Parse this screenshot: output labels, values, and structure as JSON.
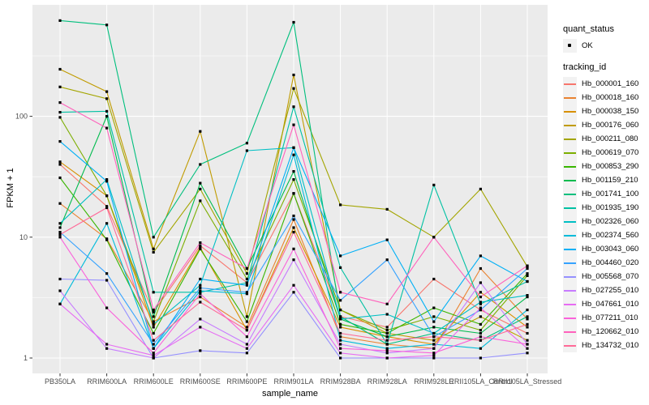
{
  "figure": {
    "panel_bg": "#EBEBEB",
    "grid_color": "#FFFFFF",
    "axis_text_color": "#4D4D4D",
    "tick_color": "#333333",
    "point_color": "#000000"
  },
  "legend": {
    "quant_status": {
      "title": "quant_status",
      "entries": [
        {
          "label": "OK",
          "symbol": "black-point"
        }
      ]
    },
    "tracking": {
      "title": "tracking_id"
    }
  },
  "chart_data": {
    "type": "line",
    "title": "",
    "xlabel": "sample_name",
    "ylabel": "FPKM + 1",
    "y_scale": "log10",
    "ylim": [
      1,
      840
    ],
    "y_ticks": [
      1,
      10,
      100
    ],
    "y_tick_labels": [
      "1",
      "10",
      "100"
    ],
    "y_minor": [
      3.1623,
      31.623,
      316.23
    ],
    "grid": true,
    "legend_position": "right",
    "point_marker": "small-black-square",
    "categories": [
      "PB350LA",
      "RRIM600LA",
      "RRIM600LE",
      "RRIM600SE",
      "RRIM600PE",
      "RRIM901LA",
      "RRIM928BA",
      "RRIM928LA",
      "RRIM928LE",
      "RRII105LA_Control",
      "RRII105LA_Stressed"
    ],
    "series": [
      {
        "name": "Hb_000001_160",
        "color": "#F8766D",
        "values": [
          40,
          18,
          2.4,
          8.5,
          4.2,
          23,
          2.2,
          1.8,
          4.5,
          2.5,
          1.6
        ]
      },
      {
        "name": "Hb_000018_160",
        "color": "#EA8331",
        "values": [
          19,
          9.7,
          2.0,
          3.2,
          1.8,
          14,
          1.5,
          1.3,
          1.2,
          5.5,
          2.1
        ]
      },
      {
        "name": "Hb_000038_150",
        "color": "#D89000",
        "values": [
          42,
          22,
          1.8,
          8.2,
          1.7,
          12,
          1.8,
          1.5,
          1.3,
          3.5,
          1.8
        ]
      },
      {
        "name": "Hb_000176_060",
        "color": "#C09B00",
        "values": [
          245,
          160,
          8,
          75,
          2.2,
          220,
          2.5,
          1.6,
          1.4,
          2.2,
          1.4
        ]
      },
      {
        "name": "Hb_000211_080",
        "color": "#A3A500",
        "values": [
          175,
          140,
          7.5,
          25,
          5,
          170,
          18.5,
          17,
          10,
          25,
          5.7
        ]
      },
      {
        "name": "Hb_000619_070",
        "color": "#7CAE00",
        "values": [
          98,
          22,
          2.0,
          20,
          4.5,
          30,
          2.5,
          1.7,
          2.2,
          1.7,
          4.8
        ]
      },
      {
        "name": "Hb_000853_290",
        "color": "#39B600",
        "values": [
          31,
          9.5,
          1.6,
          8,
          2.0,
          23,
          1.9,
          1.6,
          2.6,
          1.9,
          5.0
        ]
      },
      {
        "name": "Hb_001159_210",
        "color": "#00BB4E",
        "values": [
          12,
          100,
          2.2,
          28,
          5.5,
          35,
          2.1,
          1.5,
          1.8,
          1.6,
          3.2
        ]
      },
      {
        "name": "Hb_001741_100",
        "color": "#00BF7D",
        "values": [
          620,
          570,
          10,
          40,
          60,
          600,
          2.2,
          1.3,
          1.6,
          1.4,
          2.2
        ]
      },
      {
        "name": "Hb_001935_190",
        "color": "#00C1A3",
        "values": [
          108,
          110,
          3.5,
          3.5,
          4.2,
          120,
          5.6,
          1.3,
          27,
          2.8,
          4.3
        ]
      },
      {
        "name": "Hb_002326_060",
        "color": "#00BFC4",
        "values": [
          13,
          30,
          1.9,
          4.0,
          52,
          55,
          2.1,
          2.3,
          1.6,
          2.9,
          3.3
        ]
      },
      {
        "name": "Hb_002374_560",
        "color": "#00BBDA",
        "values": [
          2.8,
          13,
          1.2,
          3.6,
          3.4,
          48,
          1.4,
          1.2,
          1.3,
          1.2,
          2.5
        ]
      },
      {
        "name": "Hb_003043_060",
        "color": "#00B0F6",
        "values": [
          62,
          29,
          1.2,
          4.5,
          4.0,
          55,
          7.0,
          9.5,
          2.0,
          7.0,
          4.3
        ]
      },
      {
        "name": "Hb_004460_020",
        "color": "#35A2FF",
        "values": [
          11,
          5,
          1.3,
          3.8,
          3.5,
          15,
          3.0,
          6.5,
          1.5,
          2.5,
          5.5
        ]
      },
      {
        "name": "Hb_005568_070",
        "color": "#9590FF",
        "values": [
          4.5,
          4.4,
          1.0,
          1.15,
          1.1,
          3.5,
          1.0,
          1.0,
          1.0,
          1.0,
          1.1
        ]
      },
      {
        "name": "Hb_027255_010",
        "color": "#C77CFF",
        "values": [
          3.6,
          1.2,
          1.0,
          2.1,
          1.3,
          6.5,
          1.3,
          1.1,
          1.2,
          4.2,
          1.3
        ]
      },
      {
        "name": "Hb_047661_010",
        "color": "#E76BF3",
        "values": [
          2.8,
          1.3,
          1.05,
          1.8,
          1.2,
          4.0,
          1.1,
          1.0,
          1.05,
          2.6,
          1.2
        ]
      },
      {
        "name": "Hb_077211_010",
        "color": "#FA62DB",
        "values": [
          10,
          2.6,
          1.1,
          3.4,
          1.5,
          8.0,
          1.2,
          1.15,
          1.1,
          1.5,
          1.3
        ]
      },
      {
        "name": "Hb_120662_010",
        "color": "#FF62BC",
        "values": [
          130,
          80,
          2.5,
          9,
          5.5,
          85,
          3.5,
          2.8,
          10,
          3.2,
          5.8
        ]
      },
      {
        "name": "Hb_134732_010",
        "color": "#FF6A98",
        "values": [
          10.5,
          17.5,
          1.4,
          2.9,
          1.7,
          11,
          1.6,
          1.4,
          1.5,
          1.4,
          1.9
        ]
      }
    ]
  }
}
